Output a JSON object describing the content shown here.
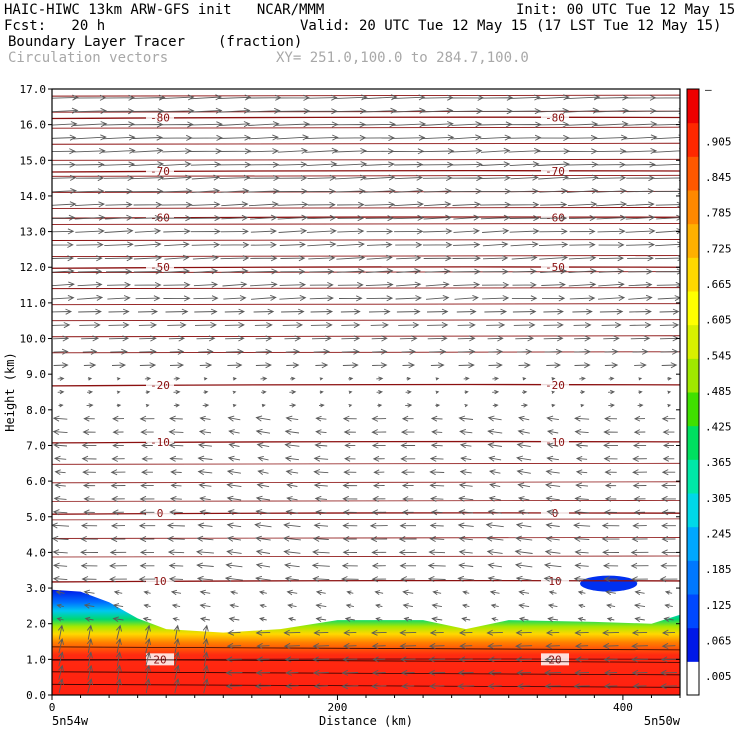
{
  "header": {
    "model": "HAIC-HIWC 13km ARW-GFS init   NCAR/MMM",
    "init": "Init: 00 UTC Tue 12 May 15",
    "fcst": "Fcst:   20 h",
    "valid": "Valid: 20 UTC Tue 12 May 15 (17 LST Tue 12 May 15)",
    "field": "Boundary Layer Tracer",
    "units": "(fraction)",
    "overlay": "Circulation vectors",
    "xy": "XY= 251.0,100.0 to 284.7,100.0"
  },
  "chart_data": {
    "type": "heatmap",
    "title": "Boundary Layer Tracer",
    "units": "(fraction)",
    "xlabel": "Distance (km)",
    "ylabel": "Height (km)",
    "xlim": [
      0,
      440
    ],
    "ylim": [
      0,
      17
    ],
    "x_ticks": [
      0,
      200,
      400
    ],
    "y_ticks": [
      "0.0",
      "1.0",
      "2.0",
      "3.0",
      "4.0",
      "5.0",
      "6.0",
      "7.0",
      "8.0",
      "9.0",
      "10.0",
      "11.0",
      "12.0",
      "13.0",
      "14.0",
      "15.0",
      "16.0",
      "17.0"
    ],
    "x_endpoints": {
      "left": "5n54w",
      "right": "5n50w"
    },
    "colorbar": {
      "labels": [
        ".005",
        ".065",
        ".125",
        ".185",
        ".245",
        ".305",
        ".365",
        ".425",
        ".485",
        ".545",
        ".605",
        ".665",
        ".725",
        ".785",
        ".845",
        ".905",
        "–"
      ],
      "colors": [
        "#ffffff",
        "#0018e8",
        "#0048ff",
        "#0078ff",
        "#00a8ff",
        "#00d8e8",
        "#00e8a8",
        "#00e060",
        "#40e000",
        "#a0e800",
        "#d8f000",
        "#ffff00",
        "#ffd800",
        "#ffb000",
        "#ff8800",
        "#ff5800",
        "#ff2800",
        "#ee0000"
      ]
    },
    "tracer_top_km": [
      {
        "x": 0,
        "y": 2.95
      },
      {
        "x": 20,
        "y": 2.9
      },
      {
        "x": 40,
        "y": 2.6
      },
      {
        "x": 60,
        "y": 2.15
      },
      {
        "x": 80,
        "y": 1.85
      },
      {
        "x": 120,
        "y": 1.75
      },
      {
        "x": 160,
        "y": 1.85
      },
      {
        "x": 200,
        "y": 2.1
      },
      {
        "x": 260,
        "y": 2.1
      },
      {
        "x": 290,
        "y": 1.85
      },
      {
        "x": 320,
        "y": 2.1
      },
      {
        "x": 380,
        "y": 2.05
      },
      {
        "x": 420,
        "y": 2.0
      },
      {
        "x": 440,
        "y": 2.25
      }
    ],
    "tracer_blob": {
      "x": [
        370,
        410
      ],
      "y": [
        2.9,
        3.35
      ]
    },
    "temperature_contours": [
      {
        "value": "-80",
        "km": 16.2
      },
      {
        "value": "-70",
        "km": 14.7
      },
      {
        "value": "-60",
        "km": 13.4
      },
      {
        "value": "-50",
        "km": 12.0
      },
      {
        "value": "-20",
        "km": 8.7
      },
      {
        "value": "-10",
        "km": 7.1
      },
      {
        "value": "0",
        "km": 5.1
      },
      {
        "value": "10",
        "km": 3.2
      },
      {
        "value": "20",
        "km": 1.0
      }
    ],
    "vector_field": {
      "upper_level_flow": "westerly, ~1–6 km easterly, low-level rotor near x<120 km"
    }
  }
}
